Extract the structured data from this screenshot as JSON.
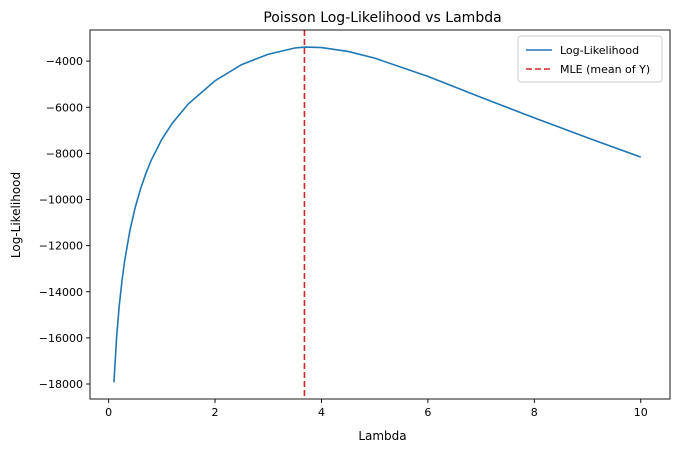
{
  "chart_data": {
    "type": "line",
    "title": "Poisson Log-Likelihood vs Lambda",
    "xlabel": "Lambda",
    "ylabel": "Log-Likelihood",
    "xlim": [
      -0.35,
      10.55
    ],
    "ylim": [
      -18650,
      -2650
    ],
    "xticks": [
      0,
      2,
      4,
      6,
      8,
      10
    ],
    "yticks": [
      -18000,
      -16000,
      -14000,
      -12000,
      -10000,
      -8000,
      -6000,
      -4000
    ],
    "xtick_labels": [
      "0",
      "2",
      "4",
      "6",
      "8",
      "10"
    ],
    "ytick_labels": [
      "−18000",
      "−16000",
      "−14000",
      "−12000",
      "−10000",
      "−8000",
      "−6000",
      "−4000"
    ],
    "grid": false,
    "legend_position": "top-right",
    "series": [
      {
        "name": "Log-Likelihood",
        "color": "#1f77b4",
        "style": "solid",
        "x": [
          0.1,
          0.15,
          0.2,
          0.25,
          0.3,
          0.4,
          0.5,
          0.6,
          0.7,
          0.8,
          1.0,
          1.2,
          1.5,
          2.0,
          2.5,
          3.0,
          3.5,
          3.7,
          4.0,
          4.5,
          5.0,
          6.0,
          7.0,
          8.0,
          9.0,
          10.0
        ],
        "y": [
          -17930,
          -15960,
          -14600,
          -13540,
          -12680,
          -11340,
          -10340,
          -9540,
          -8870,
          -8300,
          -7390,
          -6680,
          -5850,
          -4850,
          -4150,
          -3700,
          -3430,
          -3390,
          -3410,
          -3580,
          -3870,
          -4660,
          -5570,
          -6460,
          -7320,
          -8160
        ]
      },
      {
        "name": "MLE (mean of Y)",
        "color": "#d62728",
        "style": "dashed",
        "x_value": 3.68
      }
    ]
  }
}
